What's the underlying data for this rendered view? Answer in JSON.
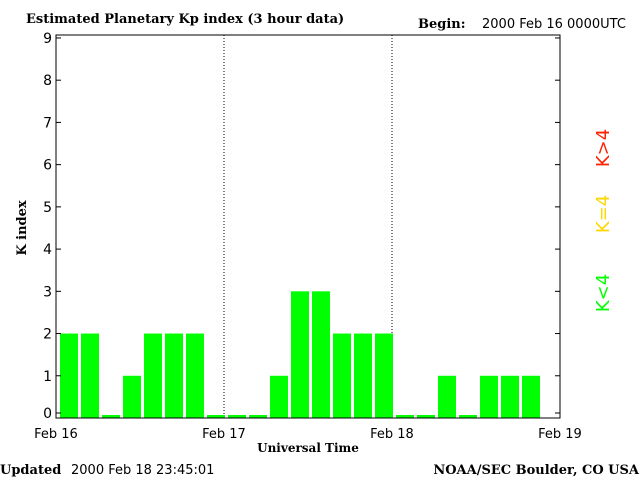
{
  "header": {
    "title": "Estimated Planetary Kp index (3 hour data)",
    "begin_label": "Begin:",
    "begin_value": "2000 Feb 16 0000UTC"
  },
  "footer": {
    "updated_label": "Updated",
    "updated_value": "2000 Feb 18 23:45:01",
    "source": "NOAA/SEC Boulder, CO USA"
  },
  "legend": {
    "high": "K>4",
    "equal": "K=4",
    "low": "K<4"
  },
  "colors": {
    "low": "#00ff00",
    "equal": "#ffd700",
    "high": "#ff2000",
    "axis": "#000000"
  },
  "chart_data": {
    "type": "bar",
    "title": "Estimated Planetary Kp index (3 hour data)",
    "xlabel": "Universal Time",
    "ylabel": "K index",
    "ylim": [
      0,
      9
    ],
    "yticks": [
      0,
      1,
      2,
      3,
      4,
      5,
      6,
      7,
      8,
      9
    ],
    "xticks": [
      "Feb 16",
      "Feb 17",
      "Feb 18",
      "Feb 19"
    ],
    "grid": "dotted vertical lines at day boundaries",
    "bins_per_day": 8,
    "values": [
      2,
      2,
      0,
      1,
      2,
      2,
      2,
      0,
      0,
      0,
      1,
      3,
      3,
      2,
      2,
      2,
      0,
      0,
      1,
      0,
      1,
      1,
      1
    ]
  }
}
